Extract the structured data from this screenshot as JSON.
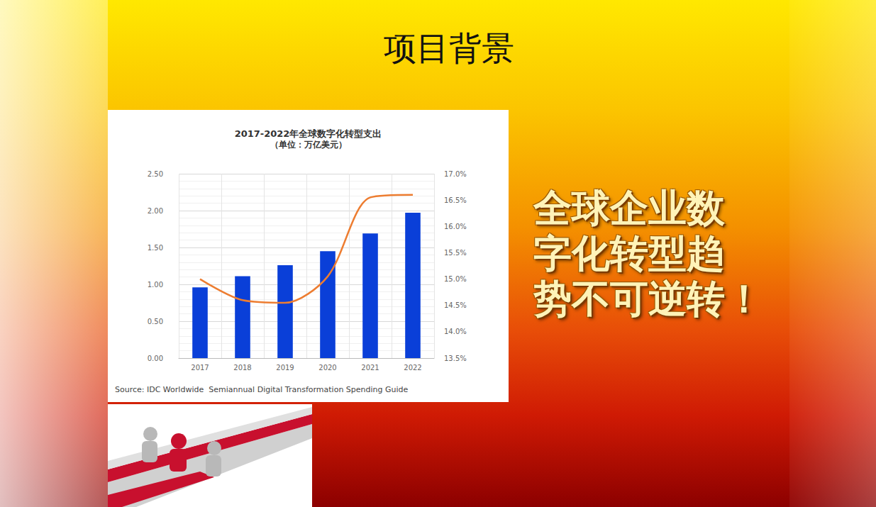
{
  "heading": "项目背景",
  "callout": "全球企业数字化转型趋势不可逆转！",
  "chart_data": {
    "type": "bar",
    "title": "2017-2022年全球数字化转型支出",
    "subtitle": "（单位：万亿美元）",
    "source": "Source: IDC Worldwide  Semiannual Digital Transformation Spending Guide",
    "categories": [
      "2017",
      "2018",
      "2019",
      "2020",
      "2021",
      "2022"
    ],
    "series": [
      {
        "type": "bar",
        "color": "#0a3fd8",
        "values": [
          0.96,
          1.11,
          1.26,
          1.45,
          1.69,
          1.97
        ]
      },
      {
        "type": "line",
        "axis": "y2",
        "color": "#ed7d31",
        "marker": "none",
        "values": [
          15.0,
          14.6,
          14.55,
          15.05,
          16.55,
          16.6
        ]
      }
    ],
    "ylim": [
      0,
      2.5
    ],
    "yticks": [
      {
        "value": 0,
        "label": "0.00"
      },
      {
        "value": 0.5,
        "label": "0.50"
      },
      {
        "value": 1,
        "label": "1.00"
      },
      {
        "value": 1.5,
        "label": "1.50"
      },
      {
        "value": 2,
        "label": "2.00"
      },
      {
        "value": 2.5,
        "label": "2.50"
      }
    ],
    "y2lim": [
      13.5,
      17
    ],
    "y2ticks": [
      {
        "value": 13.5,
        "label": "13.5%"
      },
      {
        "value": 14,
        "label": "14.0%"
      },
      {
        "value": 14.5,
        "label": "14.5%"
      },
      {
        "value": 15,
        "label": "15.0%"
      },
      {
        "value": 15.5,
        "label": "15.5%"
      },
      {
        "value": 16,
        "label": "16.0%"
      },
      {
        "value": 16.5,
        "label": "16.5%"
      },
      {
        "value": 17,
        "label": "17.0%"
      }
    ],
    "grid": true
  }
}
